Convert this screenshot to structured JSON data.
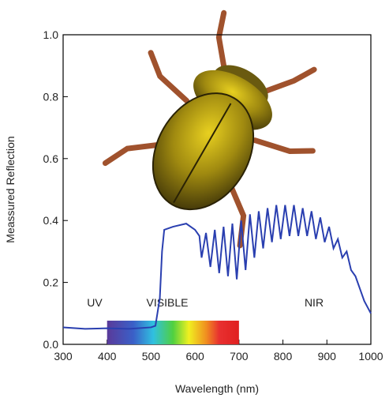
{
  "chart_data": {
    "type": "line",
    "x_label": "Wavelength (nm)",
    "y_label": "Meassured Reflection",
    "annotations": [
      "UV",
      "VISIBLE",
      "NIR"
    ],
    "spectrum_band": [
      400,
      700
    ],
    "series": [
      {
        "color": "#2a3fb0",
        "x": [
          300,
          350,
          400,
          450,
          500,
          510,
          520,
          525,
          530,
          550,
          580,
          600,
          610,
          615,
          625,
          635,
          645,
          655,
          665,
          675,
          685,
          695,
          705,
          715,
          725,
          735,
          745,
          755,
          765,
          775,
          785,
          795,
          805,
          815,
          825,
          835,
          845,
          855,
          865,
          875,
          885,
          895,
          905,
          915,
          925,
          935,
          945,
          955,
          965,
          975,
          985,
          1000
        ],
        "values": [
          0.055,
          0.05,
          0.052,
          0.05,
          0.055,
          0.06,
          0.15,
          0.3,
          0.37,
          0.38,
          0.39,
          0.37,
          0.35,
          0.28,
          0.36,
          0.25,
          0.37,
          0.23,
          0.38,
          0.22,
          0.39,
          0.21,
          0.4,
          0.24,
          0.42,
          0.28,
          0.43,
          0.31,
          0.44,
          0.33,
          0.45,
          0.34,
          0.45,
          0.35,
          0.45,
          0.35,
          0.44,
          0.35,
          0.43,
          0.34,
          0.41,
          0.33,
          0.38,
          0.31,
          0.34,
          0.28,
          0.3,
          0.24,
          0.22,
          0.18,
          0.14,
          0.1
        ]
      }
    ],
    "xlim": [
      300,
      1000
    ],
    "ylim": [
      0,
      1
    ],
    "xticks": [
      300,
      400,
      500,
      600,
      700,
      800,
      900,
      1000
    ],
    "yticks": [
      {
        "value": 0,
        "label": "0.0"
      },
      0.2,
      0.4,
      0.6,
      0.8,
      {
        "value": 1,
        "label": "1.0"
      }
    ]
  }
}
